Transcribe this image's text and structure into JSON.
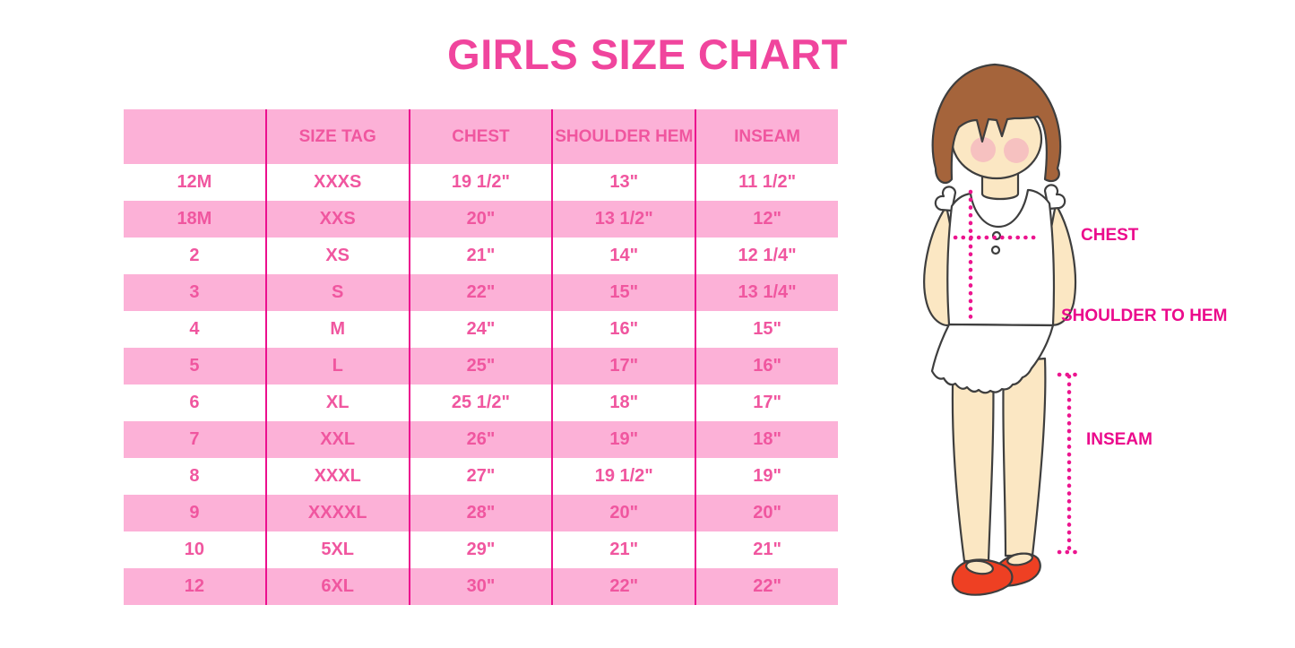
{
  "title": {
    "text": "GIRLS SIZE CHART"
  },
  "table": {
    "headers": [
      "",
      "SIZE TAG",
      "CHEST",
      "SHOULDER HEM",
      "INSEAM"
    ],
    "rows": [
      [
        "12M",
        "XXXS",
        "19 1/2\"",
        "13\"",
        "11 1/2\""
      ],
      [
        "18M",
        "XXS",
        "20\"",
        "13 1/2\"",
        "12\""
      ],
      [
        "2",
        "XS",
        "21\"",
        "14\"",
        "12 1/4\""
      ],
      [
        "3",
        "S",
        "22\"",
        "15\"",
        "13 1/4\""
      ],
      [
        "4",
        "M",
        "24\"",
        "16\"",
        "15\""
      ],
      [
        "5",
        "L",
        "25\"",
        "17\"",
        "16\""
      ],
      [
        "6",
        "XL",
        "25 1/2\"",
        "18\"",
        "17\""
      ],
      [
        "7",
        "XXL",
        "26\"",
        "19\"",
        "18\""
      ],
      [
        "8",
        "XXXL",
        "27\"",
        "19 1/2\"",
        "19\""
      ],
      [
        "9",
        "XXXXL",
        "28\"",
        "20\"",
        "20\""
      ],
      [
        "10",
        "5XL",
        "29\"",
        "21\"",
        "21\""
      ],
      [
        "12",
        "6XL",
        "30\"",
        "22\"",
        "22\""
      ]
    ]
  },
  "figure": {
    "labels": {
      "chest": "CHEST",
      "shoulder_to_hem": "SHOULDER TO HEM",
      "inseam": "INSEAM"
    }
  },
  "colors": {
    "title_pink": "#F0459D",
    "band_pink": "#FCB1D7",
    "cell_text_pink": "#F0569F",
    "line_magenta": "#EC0F8E",
    "label_magenta": "#EB0A8C",
    "dotted_pink": "#EC158F",
    "hair_brown": "#A5643B",
    "outline": "#3E3E3E",
    "skin": "#FBE7C3",
    "blush": "#F3A9BE",
    "shoe_red": "#EE4023",
    "shirt_white": "#FFFFFF"
  }
}
